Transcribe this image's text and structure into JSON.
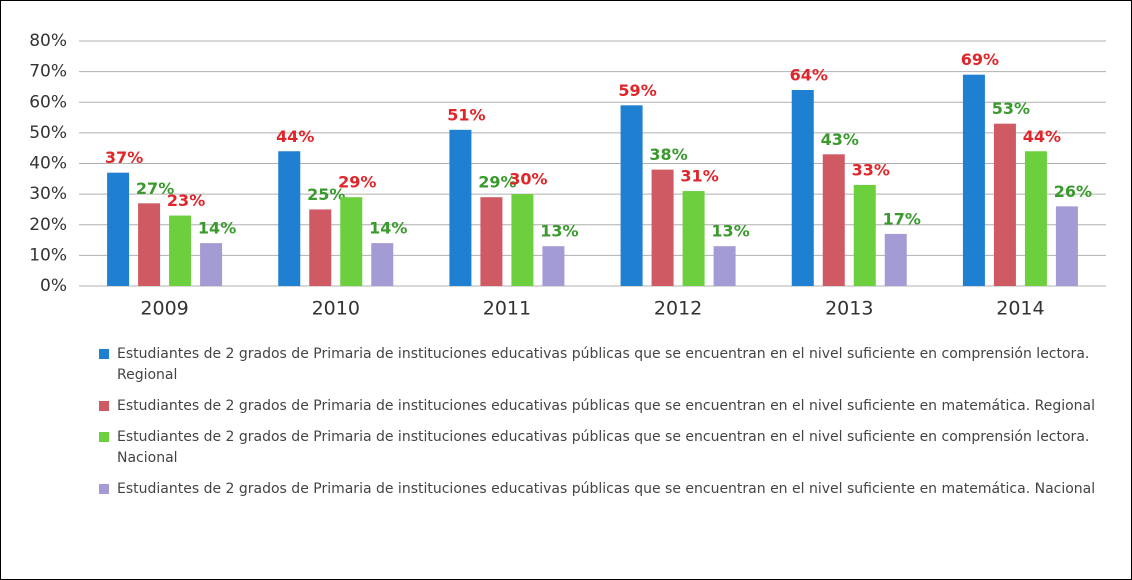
{
  "chart_data": {
    "type": "bar",
    "categories": [
      "2009",
      "2010",
      "2011",
      "2012",
      "2013",
      "2014"
    ],
    "series": [
      {
        "name": "Estudiantes de 2 grados de Primaria de instituciones educativas públicas que se encuentran en el nivel suficiente en comprensión lectora. Regional",
        "color": "#1f7fd0",
        "label_color": "#e0262b",
        "values": [
          37,
          44,
          51,
          59,
          64,
          69
        ],
        "value_labels": [
          "37%",
          "44%",
          "51%",
          "59%",
          "64%",
          "69%"
        ]
      },
      {
        "name": "Estudiantes de 2 grados de Primaria de instituciones educativas públicas que se encuentran en el nivel suficiente en matemática. Regional",
        "color": "#cf5a63",
        "label_color": "#3a9a2e",
        "values": [
          27,
          25,
          29,
          38,
          43,
          53
        ],
        "value_labels": [
          "27%",
          "25%",
          "29%",
          "38%",
          "43%",
          "53%"
        ]
      },
      {
        "name": "Estudiantes de 2 grados de Primaria de instituciones educativas públicas que se encuentran en el nivel suficiente en comprensión lectora. Nacional",
        "color": "#6ccf3e",
        "label_color": "#e0262b",
        "values": [
          23,
          29,
          30,
          31,
          33,
          44
        ],
        "value_labels": [
          "23%",
          "29%",
          "30%",
          "31%",
          "33%",
          "44%"
        ]
      },
      {
        "name": "Estudiantes de 2 grados de Primaria de instituciones educativas públicas que se encuentran en el nivel suficiente en matemática. Nacional",
        "color": "#a39bd3",
        "label_color": "#3a9a2e",
        "values": [
          14,
          14,
          13,
          13,
          17,
          26
        ],
        "value_labels": [
          "14%",
          "14%",
          "13%",
          "13%",
          "17%",
          "26%"
        ]
      }
    ],
    "ylim": [
      0,
      80
    ],
    "yticks": [
      {
        "value": 0,
        "label": "0%"
      },
      {
        "value": 10,
        "label": "10%"
      },
      {
        "value": 20,
        "label": "20%"
      },
      {
        "value": 30,
        "label": "30%"
      },
      {
        "value": 40,
        "label": "40%"
      },
      {
        "value": 50,
        "label": "50%"
      },
      {
        "value": 60,
        "label": "60%"
      },
      {
        "value": 70,
        "label": "70%"
      },
      {
        "value": 80,
        "label": "80%"
      }
    ],
    "grid": true,
    "legend": "bottom"
  }
}
